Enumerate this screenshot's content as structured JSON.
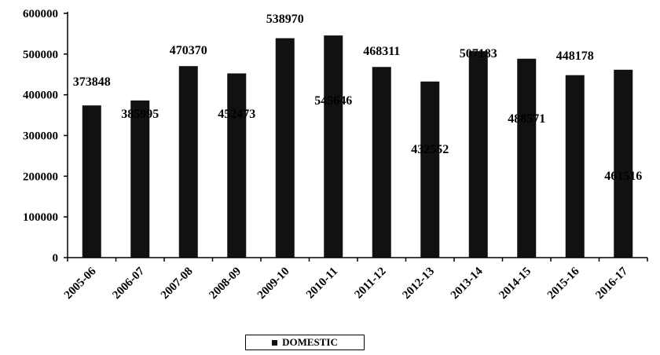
{
  "chart_data": {
    "type": "bar",
    "categories": [
      "2005-06",
      "2006-07",
      "2007-08",
      "2008-09",
      "2009-10",
      "2010-11",
      "2011-12",
      "2012-13",
      "2013-14",
      "2014-15",
      "2015-16",
      "2016-17"
    ],
    "series": [
      {
        "name": "DOMESTIC",
        "values": [
          373848,
          385995,
          470370,
          452473,
          538970,
          545646,
          468311,
          432552,
          507183,
          488571,
          448178,
          461516
        ],
        "value_labels": [
          "373848",
          "385995",
          "470370",
          "452473",
          "538970",
          "545646",
          "468311",
          "432552",
          "507183",
          "488571",
          "448178",
          "461516"
        ]
      }
    ],
    "yticks": [
      "0",
      "100000",
      "200000",
      "300000",
      "400000",
      "500000",
      "600000"
    ],
    "ylim": [
      0,
      600000
    ],
    "grid": false,
    "legend": "bottom-center",
    "bar_color": "#111111",
    "title": "",
    "xlabel": "",
    "ylabel": ""
  },
  "legend": {
    "label": "DOMESTIC"
  }
}
